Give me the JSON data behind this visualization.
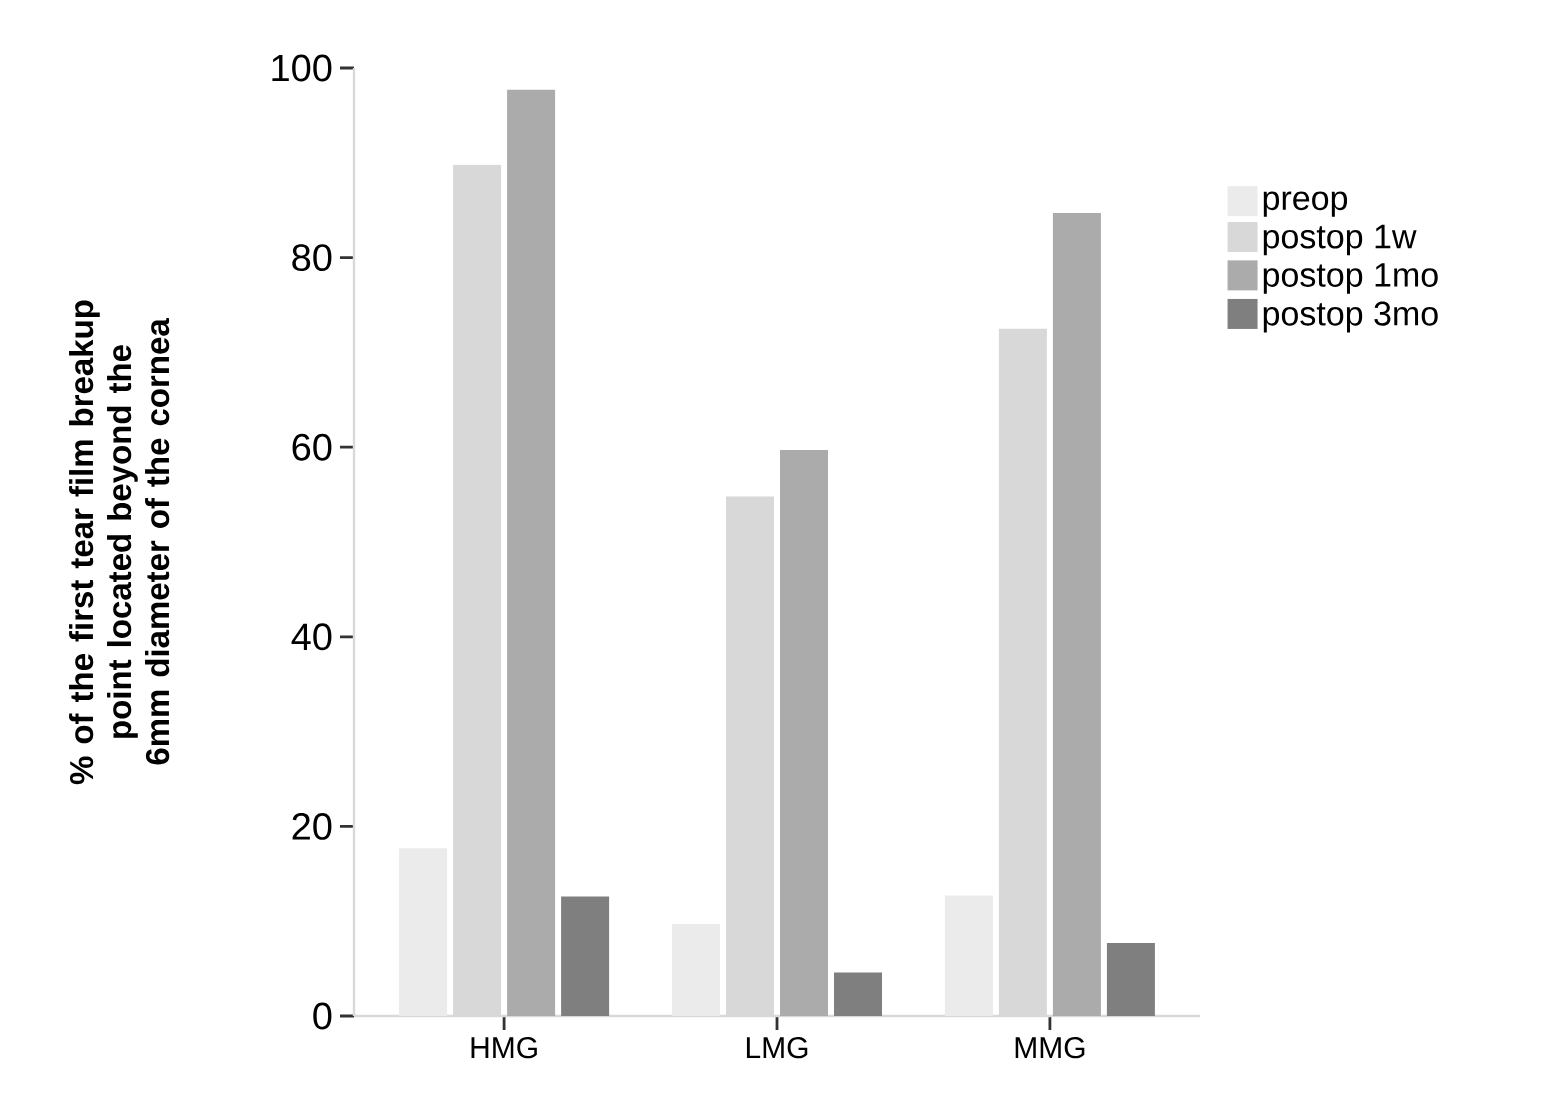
{
  "chart_data": {
    "type": "bar",
    "ylabel": "% of the first tear film breakup point located beyond the 6mm diameter of the cornea",
    "categories": [
      "HMG",
      "LMG",
      "MMG"
    ],
    "series": [
      {
        "name": "preop",
        "color": "#ebebeb",
        "values": [
          17.7,
          9.7,
          12.7
        ]
      },
      {
        "name": "postop 1w",
        "color": "#d8d8d8",
        "values": [
          89.8,
          54.8,
          72.5
        ]
      },
      {
        "name": "postop 1mo",
        "color": "#ababab",
        "values": [
          97.7,
          59.7,
          84.7
        ]
      },
      {
        "name": "postop 3mo",
        "color": "#7f7f7f",
        "values": [
          12.6,
          4.6,
          7.7
        ]
      }
    ],
    "ylim": [
      0,
      100
    ],
    "yticks": [
      0,
      20,
      40,
      60,
      80,
      100
    ],
    "grid": false,
    "legend": "top right"
  }
}
